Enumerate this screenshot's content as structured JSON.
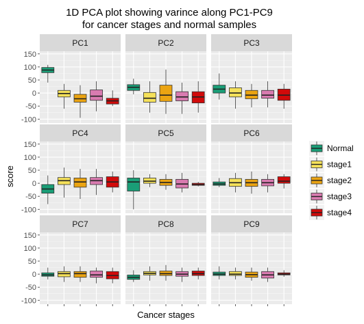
{
  "chart_data": {
    "type": "boxplot",
    "title_lines": [
      "1D PCA plot showing varince along PC1-PC9",
      "for cancer stages and normal samples"
    ],
    "xlabel": "Cancer stages",
    "ylabel": "score",
    "ylim": [
      -115,
      160
    ],
    "yticks": [
      150,
      100,
      50,
      0,
      -50,
      -100
    ],
    "yminor": [
      125,
      75,
      25,
      -25,
      -75
    ],
    "grid": true,
    "legend_position": "right",
    "series": [
      {
        "name": "Normal",
        "color": "#1a9e77"
      },
      {
        "name": "stage1",
        "color": "#f5e15a"
      },
      {
        "name": "stage2",
        "color": "#eba412"
      },
      {
        "name": "stage3",
        "color": "#d97bb0"
      },
      {
        "name": "stage4",
        "color": "#d10a0a"
      }
    ],
    "panels": [
      {
        "label": "PC1",
        "boxes": [
          {
            "min": 40,
            "q1": 78,
            "median": 88,
            "q3": 98,
            "max": 108
          },
          {
            "min": -60,
            "q1": -15,
            "median": -2,
            "q3": 10,
            "max": 35
          },
          {
            "min": -95,
            "q1": -35,
            "median": -22,
            "q3": -5,
            "max": 30
          },
          {
            "min": -70,
            "q1": -28,
            "median": -12,
            "q3": 12,
            "max": 45
          },
          {
            "min": -50,
            "q1": -42,
            "median": -30,
            "q3": -20,
            "max": 10
          }
        ]
      },
      {
        "label": "PC2",
        "boxes": [
          {
            "min": -5,
            "q1": 10,
            "median": 22,
            "q3": 32,
            "max": 55
          },
          {
            "min": -75,
            "q1": -35,
            "median": -20,
            "q3": 2,
            "max": 45
          },
          {
            "min": -80,
            "q1": -32,
            "median": -8,
            "q3": 30,
            "max": 90
          },
          {
            "min": -80,
            "q1": -30,
            "median": -15,
            "q3": 5,
            "max": 40
          },
          {
            "min": -75,
            "q1": -38,
            "median": -15,
            "q3": 5,
            "max": 45
          }
        ]
      },
      {
        "label": "PC3",
        "boxes": [
          {
            "min": -25,
            "q1": 0,
            "median": 15,
            "q3": 30,
            "max": 75
          },
          {
            "min": -60,
            "q1": -15,
            "median": 0,
            "q3": 20,
            "max": 45
          },
          {
            "min": -55,
            "q1": -22,
            "median": -8,
            "q3": 10,
            "max": 35
          },
          {
            "min": -55,
            "q1": -20,
            "median": -8,
            "q3": 10,
            "max": 45
          },
          {
            "min": -60,
            "q1": -28,
            "median": -8,
            "q3": 15,
            "max": 35
          }
        ]
      },
      {
        "label": "PC4",
        "boxes": [
          {
            "min": -80,
            "q1": -38,
            "median": -22,
            "q3": -5,
            "max": 30
          },
          {
            "min": -55,
            "q1": -5,
            "median": 10,
            "q3": 22,
            "max": 60
          },
          {
            "min": -60,
            "q1": -15,
            "median": 5,
            "q3": 20,
            "max": 55
          },
          {
            "min": -45,
            "q1": -5,
            "median": 10,
            "q3": 22,
            "max": 55
          },
          {
            "min": -35,
            "q1": -15,
            "median": 5,
            "q3": 25,
            "max": 45
          }
        ]
      },
      {
        "label": "PC5",
        "boxes": [
          {
            "min": -100,
            "q1": -30,
            "median": 5,
            "q3": 20,
            "max": 50
          },
          {
            "min": -15,
            "q1": 0,
            "median": 8,
            "q3": 20,
            "max": 35
          },
          {
            "min": -25,
            "q1": -8,
            "median": 3,
            "q3": 15,
            "max": 35
          },
          {
            "min": -35,
            "q1": -18,
            "median": -3,
            "q3": 15,
            "max": 40
          },
          {
            "min": -12,
            "q1": -8,
            "median": -5,
            "q3": 0,
            "max": 5
          }
        ]
      },
      {
        "label": "PC6",
        "boxes": [
          {
            "min": -15,
            "q1": -8,
            "median": -3,
            "q3": 5,
            "max": 20
          },
          {
            "min": -35,
            "q1": -12,
            "median": 2,
            "q3": 18,
            "max": 40
          },
          {
            "min": -40,
            "q1": -12,
            "median": 2,
            "q3": 15,
            "max": 45
          },
          {
            "min": -35,
            "q1": -10,
            "median": 2,
            "q3": 15,
            "max": 35
          },
          {
            "min": -20,
            "q1": 0,
            "median": 8,
            "q3": 25,
            "max": 35
          }
        ]
      },
      {
        "label": "PC7",
        "boxes": [
          {
            "min": -20,
            "q1": -8,
            "median": -3,
            "q3": 5,
            "max": 25
          },
          {
            "min": -30,
            "q1": -10,
            "median": 2,
            "q3": 10,
            "max": 30
          },
          {
            "min": -30,
            "q1": -12,
            "median": 2,
            "q3": 10,
            "max": 30
          },
          {
            "min": -35,
            "q1": -12,
            "median": -3,
            "q3": 12,
            "max": 25
          },
          {
            "min": -35,
            "q1": -18,
            "median": -5,
            "q3": 10,
            "max": 25
          }
        ]
      },
      {
        "label": "PC8",
        "boxes": [
          {
            "min": -30,
            "q1": -20,
            "median": -12,
            "q3": -3,
            "max": 15
          },
          {
            "min": -25,
            "q1": -3,
            "median": 3,
            "q3": 10,
            "max": 30
          },
          {
            "min": -25,
            "q1": -5,
            "median": 2,
            "q3": 12,
            "max": 35
          },
          {
            "min": -30,
            "q1": -8,
            "median": 0,
            "q3": 10,
            "max": 25
          },
          {
            "min": -20,
            "q1": -5,
            "median": 2,
            "q3": 12,
            "max": 25
          }
        ]
      },
      {
        "label": "PC9",
        "boxes": [
          {
            "min": -20,
            "q1": -5,
            "median": 0,
            "q3": 8,
            "max": 30
          },
          {
            "min": -20,
            "q1": -5,
            "median": 0,
            "q3": 10,
            "max": 25
          },
          {
            "min": -25,
            "q1": -12,
            "median": -2,
            "q3": 8,
            "max": 25
          },
          {
            "min": -30,
            "q1": -15,
            "median": -3,
            "q3": 10,
            "max": 25
          },
          {
            "min": -10,
            "q1": -3,
            "median": 0,
            "q3": 5,
            "max": 15
          }
        ]
      }
    ]
  }
}
